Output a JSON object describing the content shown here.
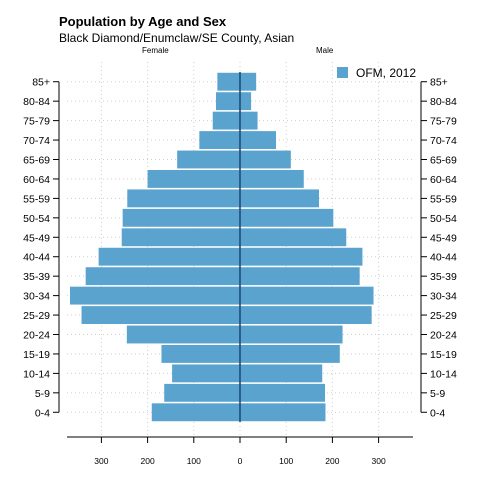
{
  "chart_data": {
    "type": "bar",
    "orientation": "horizontal-pyramid",
    "title": "Population by Age and Sex",
    "subtitle": "Black Diamond/Enumclaw/SE County, Asian",
    "left_label": "Female",
    "right_label": "Male",
    "categories": [
      "0-4",
      "5-9",
      "10-14",
      "15-19",
      "20-24",
      "25-29",
      "30-34",
      "35-39",
      "40-44",
      "45-49",
      "50-54",
      "55-59",
      "60-64",
      "65-69",
      "70-74",
      "75-79",
      "80-84",
      "85+"
    ],
    "series": [
      {
        "name": "OFM, 2012",
        "female": [
          191,
          164,
          147,
          170,
          245,
          343,
          368,
          334,
          306,
          256,
          254,
          244,
          200,
          136,
          88,
          59,
          52,
          49
        ],
        "male": [
          185,
          184,
          178,
          216,
          222,
          285,
          289,
          259,
          265,
          230,
          202,
          171,
          138,
          110,
          78,
          38,
          24,
          35
        ]
      }
    ],
    "xlim": [
      -370,
      330
    ],
    "x_ticks": [
      -300,
      -200,
      -100,
      0,
      100,
      200,
      300
    ],
    "x_tick_labels": [
      "300",
      "200",
      "100",
      "0",
      "100",
      "200",
      "300"
    ],
    "grid": true,
    "legend_position": "top-right",
    "colors": {
      "bar": "#5ba3cf",
      "center_line": "#1f4e79",
      "grid": "#cfcfcf"
    }
  }
}
